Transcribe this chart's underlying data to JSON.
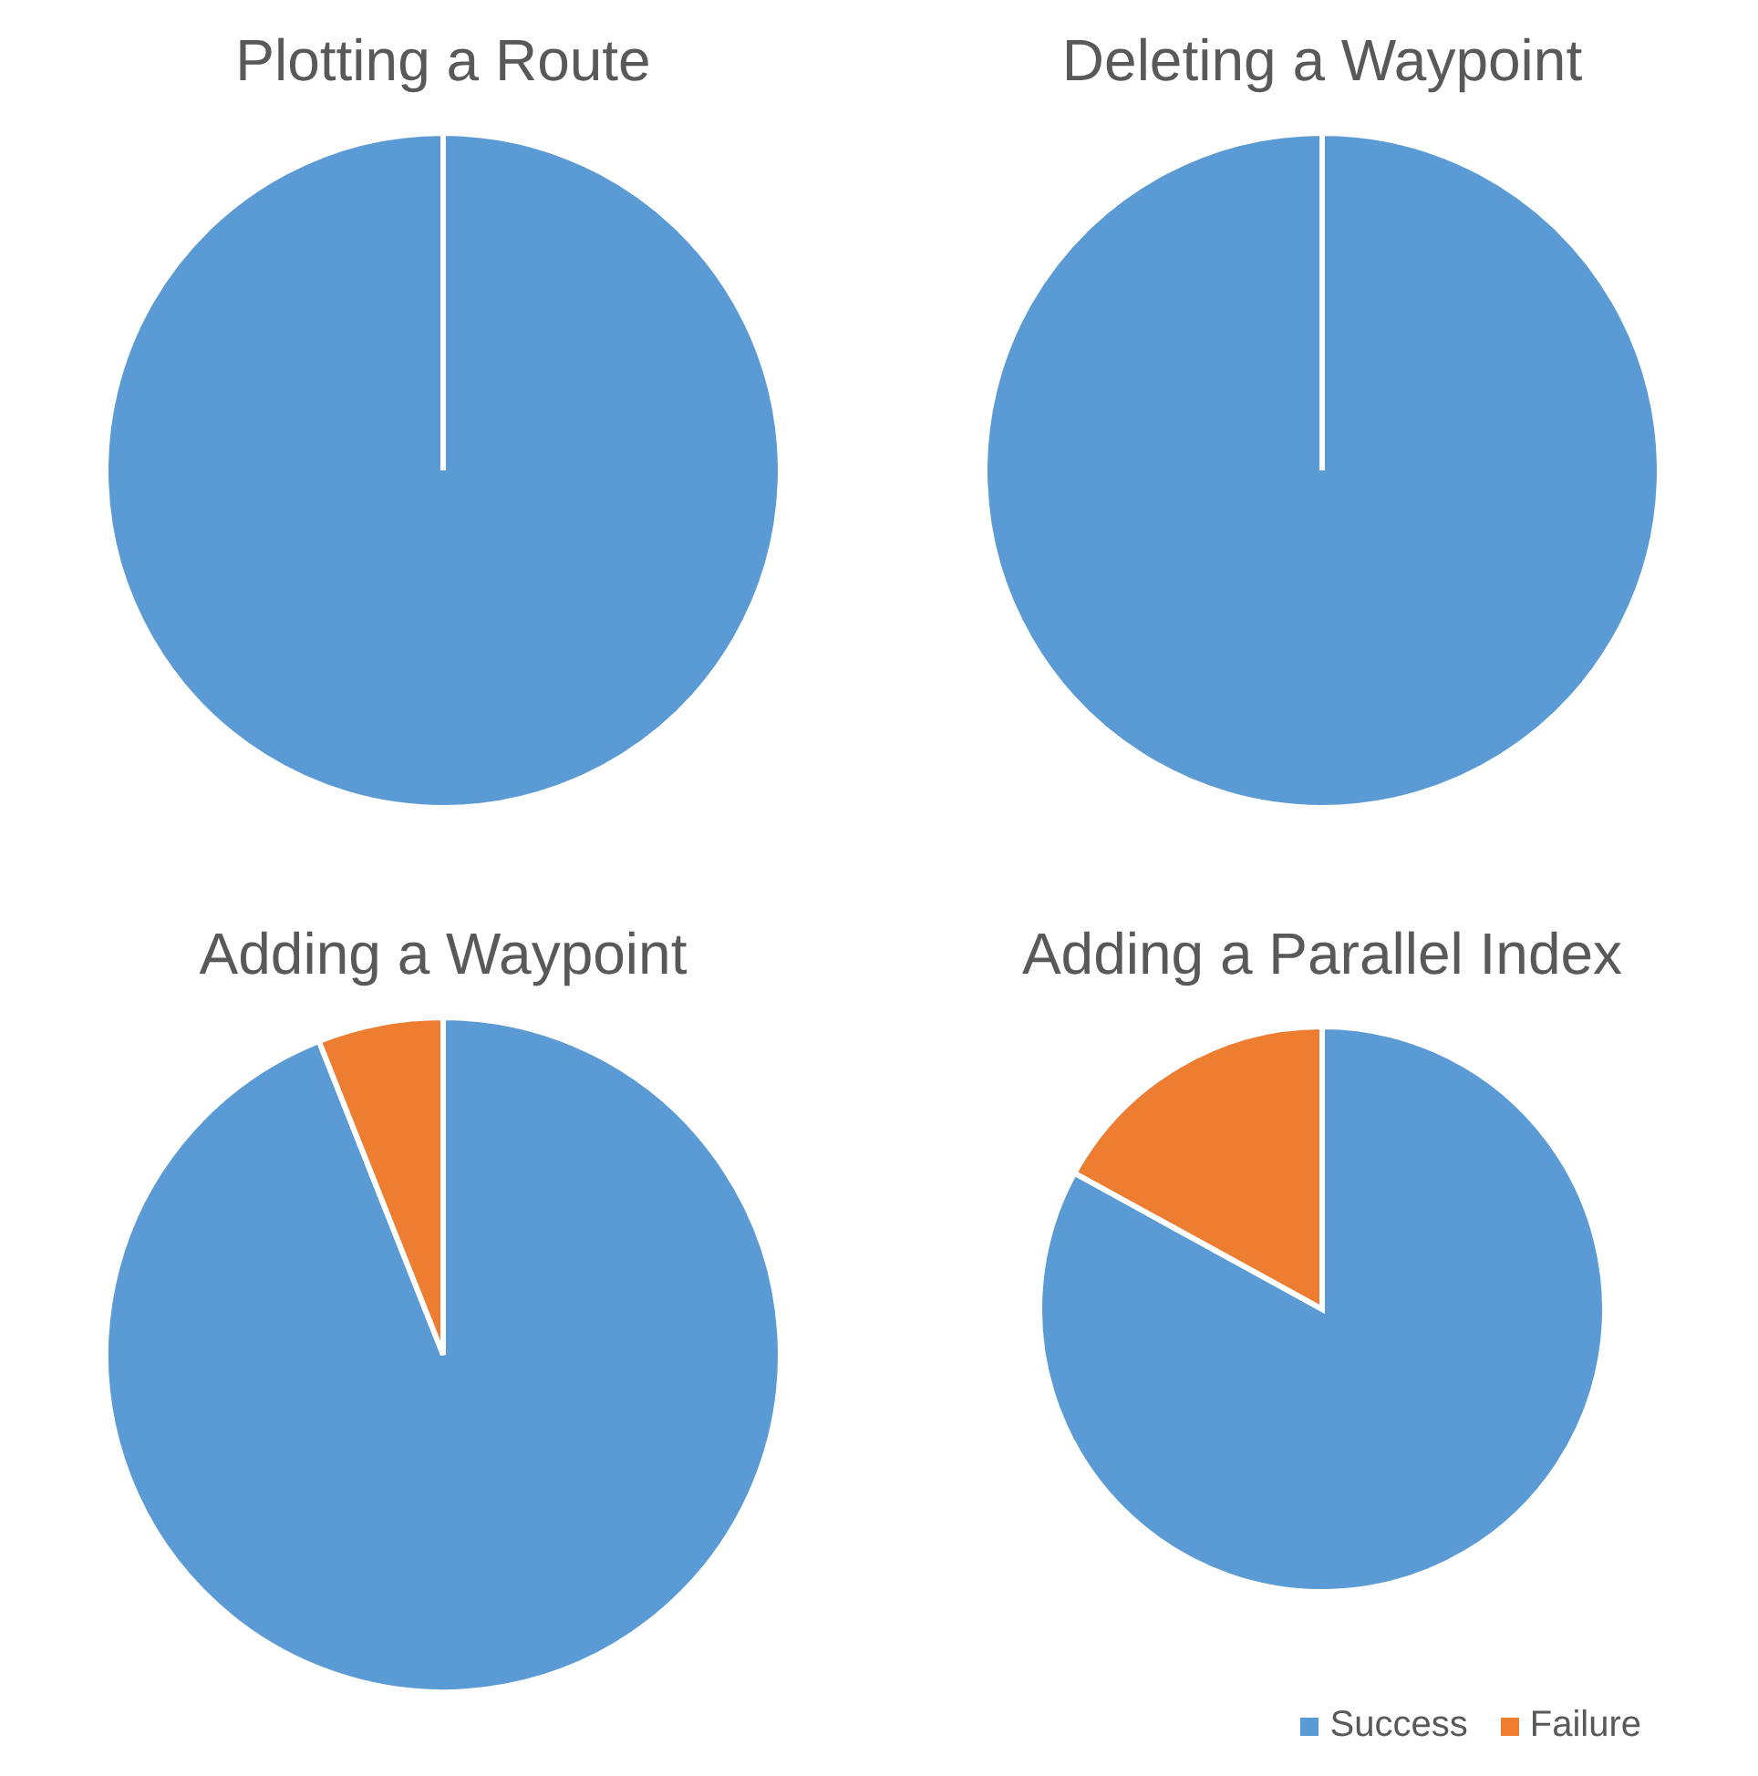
{
  "chart_data": [
    {
      "type": "pie",
      "title": "Plotting a Route",
      "categories": [
        null,
        null
      ],
      "values": [
        100,
        0
      ],
      "colors": [
        "#5b9bd5",
        "#ed7d31"
      ],
      "legend": false
    },
    {
      "type": "pie",
      "title": "Deleting a Waypoint",
      "categories": [
        null,
        null
      ],
      "values": [
        100,
        0
      ],
      "colors": [
        "#5b9bd5",
        "#ed7d31"
      ],
      "legend": false
    },
    {
      "type": "pie",
      "title": "Adding a Waypoint",
      "categories": [
        null,
        null
      ],
      "values": [
        94,
        6
      ],
      "colors": [
        "#5b9bd5",
        "#ed7d31"
      ],
      "legend": false
    },
    {
      "type": "pie",
      "title": "Adding a Parallel Index",
      "categories": [
        "Success",
        "Failure"
      ],
      "values": [
        83,
        17
      ],
      "colors": [
        "#5b9bd5",
        "#ed7d31"
      ],
      "legend": "bottom right"
    }
  ]
}
